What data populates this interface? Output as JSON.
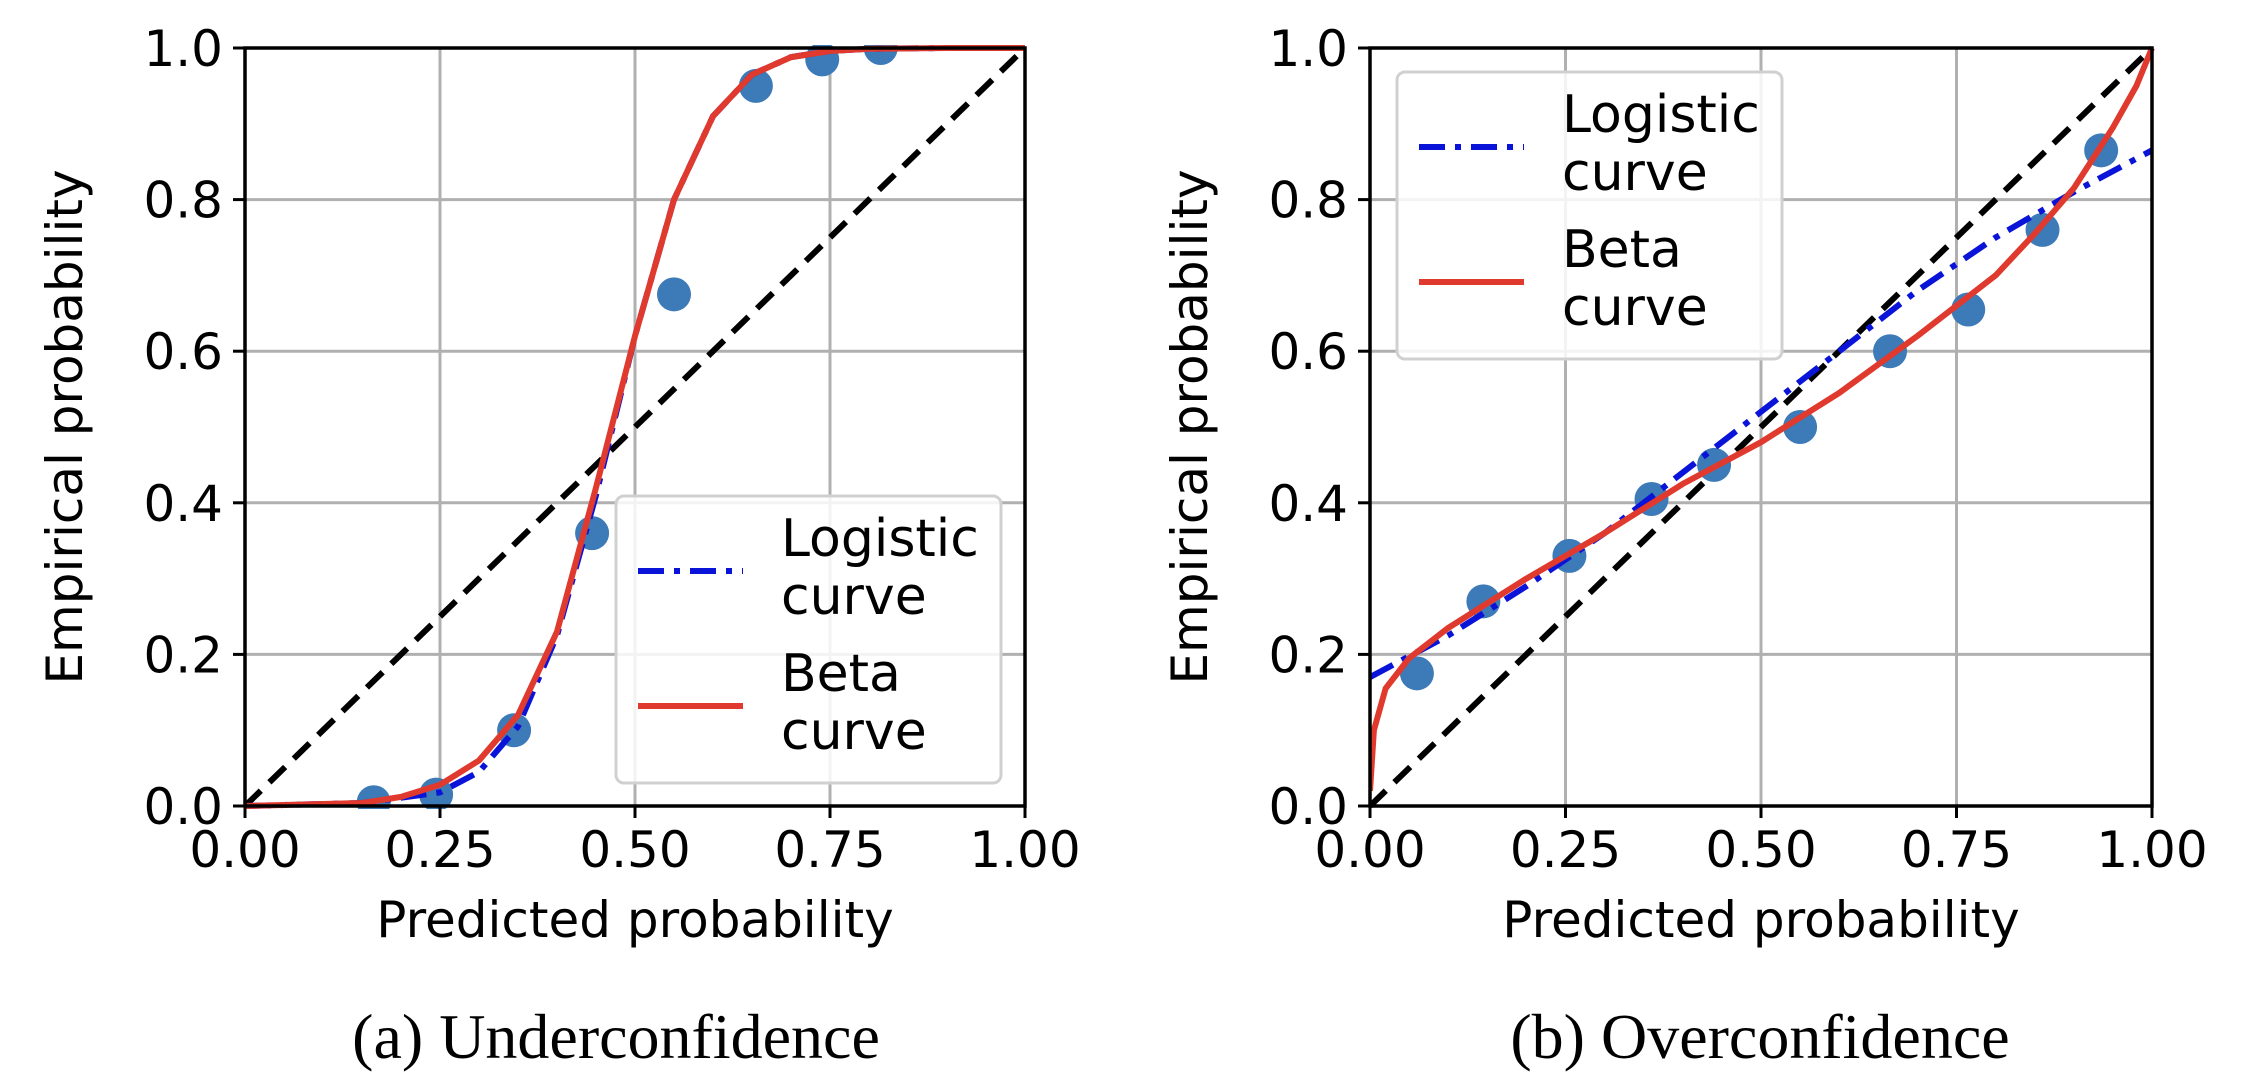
{
  "chart_data": [
    {
      "type": "line",
      "caption": "(a) Underconfidence",
      "xlabel": "Predicted probability",
      "ylabel": "Empirical probability",
      "xlim": [
        0,
        1
      ],
      "ylim": [
        0,
        1
      ],
      "x_ticks": [
        "0.00",
        "0.25",
        "0.50",
        "0.75",
        "1.00"
      ],
      "y_ticks": [
        "0.0",
        "0.2",
        "0.4",
        "0.6",
        "0.8",
        "1.0"
      ],
      "grid": true,
      "legend_position": "lower-right",
      "scatter_color": "#3d7ab8",
      "points": [
        {
          "x": 0.165,
          "y": 0.005
        },
        {
          "x": 0.245,
          "y": 0.015
        },
        {
          "x": 0.345,
          "y": 0.1
        },
        {
          "x": 0.445,
          "y": 0.36
        },
        {
          "x": 0.55,
          "y": 0.675
        },
        {
          "x": 0.655,
          "y": 0.95
        },
        {
          "x": 0.74,
          "y": 0.985
        },
        {
          "x": 0.815,
          "y": 1.0
        }
      ],
      "series": [
        {
          "name": "Logistic curve",
          "legend_lines": [
            "Logistic",
            "curve"
          ],
          "color": "#0a14d8",
          "style": "dashdot",
          "x": [
            0,
            0.15,
            0.25,
            0.3,
            0.35,
            0.4,
            0.45,
            0.5,
            0.55,
            0.6,
            0.65,
            0.7,
            0.75,
            0.8,
            0.9,
            1.0
          ],
          "y": [
            0.0,
            0.004,
            0.018,
            0.045,
            0.105,
            0.225,
            0.41,
            0.62,
            0.8,
            0.91,
            0.965,
            0.988,
            0.996,
            0.999,
            1.0,
            1.0
          ]
        },
        {
          "name": "Beta curve",
          "legend_lines": [
            "Beta",
            "curve"
          ],
          "color": "#e03a2e",
          "style": "solid",
          "x": [
            0,
            0.15,
            0.2,
            0.25,
            0.3,
            0.35,
            0.4,
            0.45,
            0.5,
            0.55,
            0.6,
            0.65,
            0.7,
            0.75,
            0.8,
            0.9,
            1.0
          ],
          "y": [
            0.0,
            0.004,
            0.012,
            0.028,
            0.06,
            0.12,
            0.23,
            0.42,
            0.62,
            0.8,
            0.91,
            0.965,
            0.988,
            0.996,
            0.999,
            1.0,
            1.0
          ]
        },
        {
          "name": "",
          "color": "#000000",
          "style": "dashed",
          "x": [
            0,
            1
          ],
          "y": [
            0,
            1
          ]
        }
      ]
    },
    {
      "type": "line",
      "caption": "(b) Overconfidence",
      "xlabel": "Predicted probability",
      "ylabel": "Empirical probability",
      "xlim": [
        0,
        1
      ],
      "ylim": [
        0,
        1
      ],
      "x_ticks": [
        "0.00",
        "0.25",
        "0.50",
        "0.75",
        "1.00"
      ],
      "y_ticks": [
        "0.0",
        "0.2",
        "0.4",
        "0.6",
        "0.8",
        "1.0"
      ],
      "grid": true,
      "legend_position": "upper-left",
      "scatter_color": "#3d7ab8",
      "points": [
        {
          "x": 0.06,
          "y": 0.175
        },
        {
          "x": 0.145,
          "y": 0.27
        },
        {
          "x": 0.255,
          "y": 0.33
        },
        {
          "x": 0.36,
          "y": 0.405
        },
        {
          "x": 0.44,
          "y": 0.45
        },
        {
          "x": 0.55,
          "y": 0.5
        },
        {
          "x": 0.665,
          "y": 0.6
        },
        {
          "x": 0.765,
          "y": 0.655
        },
        {
          "x": 0.86,
          "y": 0.76
        },
        {
          "x": 0.935,
          "y": 0.865
        }
      ],
      "series": [
        {
          "name": "Logistic curve",
          "legend_lines": [
            "Logistic",
            "curve"
          ],
          "color": "#0a14d8",
          "style": "dashdot",
          "x": [
            0,
            0.1,
            0.2,
            0.3,
            0.4,
            0.5,
            0.6,
            0.7,
            0.8,
            0.9,
            1.0
          ],
          "y": [
            0.17,
            0.225,
            0.29,
            0.36,
            0.44,
            0.52,
            0.6,
            0.68,
            0.75,
            0.81,
            0.865
          ]
        },
        {
          "name": "Beta curve",
          "legend_lines": [
            "Beta",
            "curve"
          ],
          "color": "#e03a2e",
          "style": "solid",
          "x": [
            0,
            0.005,
            0.02,
            0.05,
            0.1,
            0.2,
            0.3,
            0.4,
            0.5,
            0.6,
            0.7,
            0.8,
            0.85,
            0.9,
            0.95,
            0.98,
            1.0
          ],
          "y": [
            0.02,
            0.1,
            0.155,
            0.195,
            0.235,
            0.3,
            0.36,
            0.425,
            0.48,
            0.545,
            0.62,
            0.7,
            0.755,
            0.815,
            0.895,
            0.95,
            1.0
          ]
        },
        {
          "name": "",
          "color": "#000000",
          "style": "dashed",
          "x": [
            0,
            1
          ],
          "y": [
            0,
            1
          ]
        }
      ]
    }
  ]
}
